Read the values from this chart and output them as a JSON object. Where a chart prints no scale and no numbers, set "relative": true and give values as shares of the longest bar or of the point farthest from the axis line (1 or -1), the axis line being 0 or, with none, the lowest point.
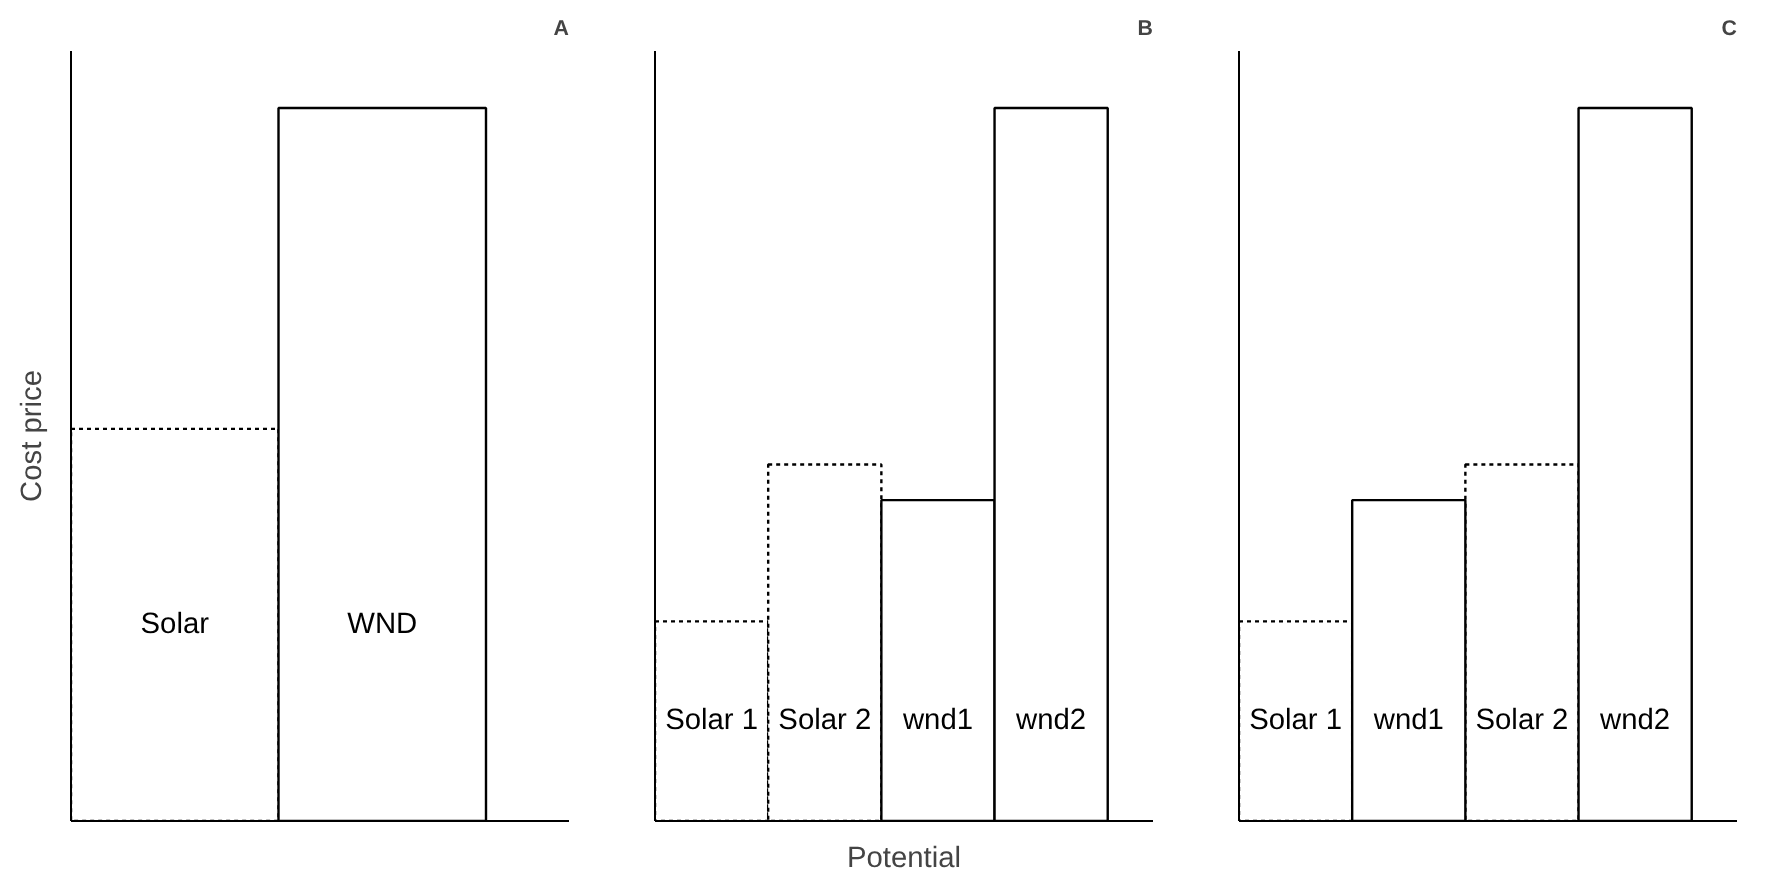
{
  "chart_data": [
    {
      "type": "bar",
      "title": "A",
      "ylabel": "Cost price",
      "relative": true,
      "categories": [
        "Solar",
        "WND"
      ],
      "series": [
        {
          "color": "#000000",
          "line_style": "dotted",
          "values": [
            0.55,
            null
          ]
        },
        {
          "color": "#000000",
          "line_style": "solid",
          "values": [
            null,
            1
          ]
        }
      ]
    },
    {
      "type": "bar",
      "title": "B",
      "xlabel": "Potential",
      "relative": true,
      "categories": [
        "Solar 1",
        "Solar 2",
        "wnd1",
        "wnd2"
      ],
      "series": [
        {
          "color": "#000000",
          "line_style": "dotted",
          "values": [
            0.28,
            0.5,
            null,
            null
          ]
        },
        {
          "color": "#000000",
          "line_style": "solid",
          "values": [
            null,
            null,
            0.45,
            1
          ]
        }
      ]
    },
    {
      "type": "bar",
      "title": "C",
      "relative": true,
      "categories": [
        "Solar 1",
        "wnd1",
        "Solar 2",
        "wnd2"
      ],
      "series": [
        {
          "color": "#000000",
          "line_style": "dotted",
          "values": [
            0.28,
            null,
            0.5,
            null
          ]
        },
        {
          "color": "#000000",
          "line_style": "solid",
          "values": [
            null,
            0.45,
            null,
            1
          ]
        }
      ]
    }
  ]
}
